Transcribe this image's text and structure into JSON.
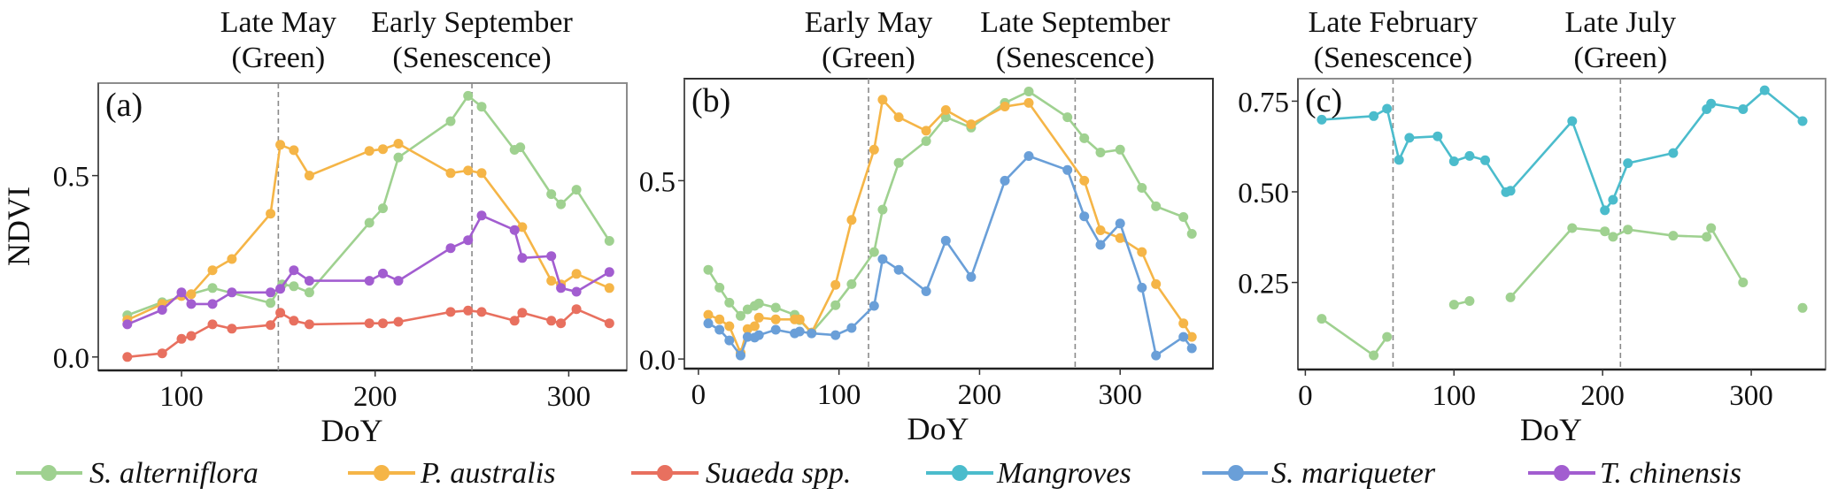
{
  "figure": {
    "ylabel": "NDVI",
    "legend": [
      {
        "name": "S. alterniflora",
        "color": "#9fd190"
      },
      {
        "name": "P. australis",
        "color": "#f5b547"
      },
      {
        "name": "Suaeda spp.",
        "color": "#e8705f"
      },
      {
        "name": "Mangroves",
        "color": "#4bbccc"
      },
      {
        "name": "S. mariqueter",
        "color": "#6a9fd8"
      },
      {
        "name": "T. chinensis",
        "color": "#a25dd0"
      }
    ],
    "reference_line_color": "#8a8a8a"
  },
  "chart_data": [
    {
      "type": "line",
      "panel": "(a)",
      "xlabel": "DoY",
      "ylabel": "NDVI",
      "xlim": [
        57,
        330
      ],
      "ylim": [
        -0.037,
        0.755
      ],
      "xticks": [
        100,
        200,
        300
      ],
      "yticks": [
        0.0,
        0.5
      ],
      "ytick_labels": [
        "0.0",
        "0.5"
      ],
      "grid": false,
      "reference_lines": [
        {
          "x": 150,
          "label_line1": "Late May",
          "label_line2": "(Green)"
        },
        {
          "x": 250,
          "label_line1": "Early September",
          "label_line2": "(Senescence)"
        }
      ],
      "series": [
        {
          "name": "S. alterniflora",
          "segments": [
            [
              [
                72,
                0.115
              ],
              [
                90,
                0.151
              ],
              [
                116,
                0.19
              ],
              [
                146,
                0.149
              ],
              [
                152,
                0.2
              ],
              [
                158,
                0.195
              ],
              [
                166,
                0.178
              ],
              [
                197,
                0.37
              ],
              [
                204,
                0.41
              ],
              [
                212,
                0.55
              ],
              [
                239,
                0.65
              ],
              [
                248,
                0.72
              ],
              [
                255,
                0.69
              ],
              [
                272,
                0.571
              ],
              [
                275,
                0.578
              ],
              [
                291,
                0.449
              ],
              [
                296,
                0.421
              ],
              [
                304,
                0.461
              ],
              [
                321,
                0.32
              ]
            ]
          ]
        },
        {
          "name": "P. australis",
          "segments": [
            [
              [
                72,
                0.102
              ],
              [
                90,
                0.146
              ],
              [
                100,
                0.168
              ],
              [
                105,
                0.173
              ],
              [
                116,
                0.239
              ],
              [
                126,
                0.27
              ],
              [
                146,
                0.395
              ],
              [
                151,
                0.585
              ],
              [
                158,
                0.57
              ],
              [
                166,
                0.5
              ],
              [
                197,
                0.568
              ],
              [
                204,
                0.573
              ],
              [
                212,
                0.588
              ],
              [
                239,
                0.507
              ],
              [
                248,
                0.514
              ],
              [
                255,
                0.507
              ],
              [
                276,
                0.358
              ],
              [
                291,
                0.21
              ],
              [
                296,
                0.2
              ],
              [
                304,
                0.229
              ],
              [
                321,
                0.19
              ]
            ]
          ]
        },
        {
          "name": "Suaeda spp.",
          "segments": [
            [
              [
                72,
                0.0
              ],
              [
                90,
                0.01
              ],
              [
                100,
                0.05
              ],
              [
                105,
                0.058
              ],
              [
                116,
                0.09
              ],
              [
                126,
                0.078
              ],
              [
                146,
                0.088
              ],
              [
                151,
                0.122
              ],
              [
                158,
                0.1
              ],
              [
                166,
                0.09
              ],
              [
                197,
                0.093
              ],
              [
                204,
                0.093
              ],
              [
                212,
                0.097
              ],
              [
                239,
                0.124
              ],
              [
                248,
                0.128
              ],
              [
                255,
                0.124
              ],
              [
                272,
                0.1
              ],
              [
                276,
                0.122
              ],
              [
                291,
                0.1
              ],
              [
                296,
                0.093
              ],
              [
                304,
                0.132
              ],
              [
                321,
                0.093
              ]
            ]
          ]
        },
        {
          "name": "T. chinensis",
          "segments": [
            [
              [
                72,
                0.09
              ],
              [
                90,
                0.13
              ],
              [
                100,
                0.178
              ],
              [
                105,
                0.146
              ],
              [
                116,
                0.146
              ],
              [
                126,
                0.178
              ],
              [
                146,
                0.178
              ],
              [
                151,
                0.188
              ],
              [
                158,
                0.239
              ],
              [
                166,
                0.21
              ],
              [
                197,
                0.21
              ],
              [
                204,
                0.23
              ],
              [
                212,
                0.21
              ],
              [
                239,
                0.3
              ],
              [
                248,
                0.322
              ],
              [
                255,
                0.39
              ],
              [
                272,
                0.35
              ],
              [
                276,
                0.273
              ],
              [
                291,
                0.278
              ],
              [
                296,
                0.19
              ],
              [
                304,
                0.18
              ],
              [
                321,
                0.234
              ]
            ]
          ]
        }
      ]
    },
    {
      "type": "line",
      "panel": "(b)",
      "xlabel": "DoY",
      "ylabel": "",
      "xlim": [
        -10,
        366
      ],
      "ylim": [
        -0.027,
        0.786
      ],
      "xticks": [
        0,
        100,
        200,
        300
      ],
      "yticks": [
        0.0,
        0.5
      ],
      "ytick_labels": [
        "0.0",
        "0.5"
      ],
      "grid": false,
      "reference_lines": [
        {
          "x": 121,
          "label_line1": "Early May",
          "label_line2": "(Green)"
        },
        {
          "x": 268,
          "label_line1": "Late September",
          "label_line2": "(Senescence)"
        }
      ],
      "series": [
        {
          "name": "S. alterniflora",
          "segments": [
            [
              [
                7,
                0.25
              ],
              [
                15,
                0.2
              ],
              [
                22,
                0.158
              ],
              [
                30,
                0.121
              ],
              [
                35,
                0.139
              ],
              [
                40,
                0.149
              ],
              [
                43,
                0.156
              ],
              [
                55,
                0.144
              ],
              [
                68.5,
                0.124
              ],
              [
                72,
                0.109
              ],
              [
                80.5,
                0.074
              ],
              [
                97.5,
                0.151
              ],
              [
                109,
                0.21
              ],
              [
                125,
                0.3
              ],
              [
                131,
                0.419
              ],
              [
                142.5,
                0.55
              ],
              [
                162,
                0.611
              ],
              [
                176,
                0.678
              ],
              [
                194,
                0.649
              ],
              [
                218,
                0.718
              ],
              [
                235,
                0.75
              ],
              [
                262.5,
                0.678
              ],
              [
                274.5,
                0.619
              ],
              [
                286,
                0.579
              ],
              [
                300,
                0.587
              ],
              [
                315.5,
                0.48
              ],
              [
                325.5,
                0.428
              ],
              [
                345,
                0.398
              ],
              [
                351,
                0.351
              ]
            ]
          ]
        },
        {
          "name": "P. australis",
          "segments": [
            [
              [
                7,
                0.124
              ],
              [
                15,
                0.111
              ],
              [
                22,
                0.092
              ],
              [
                30,
                0.017
              ],
              [
                35,
                0.084
              ],
              [
                40,
                0.092
              ],
              [
                43,
                0.116
              ],
              [
                55,
                0.111
              ],
              [
                68.5,
                0.111
              ],
              [
                72,
                0.111
              ],
              [
                80.5,
                0.074
              ],
              [
                97.5,
                0.208
              ],
              [
                109,
                0.39
              ],
              [
                125,
                0.587
              ],
              [
                131,
                0.727
              ],
              [
                142.5,
                0.678
              ],
              [
                162,
                0.64
              ],
              [
                176,
                0.698
              ],
              [
                194,
                0.658
              ],
              [
                218,
                0.708
              ],
              [
                235,
                0.718
              ],
              [
                274.5,
                0.5
              ],
              [
                286,
                0.361
              ],
              [
                300,
                0.339
              ],
              [
                315.5,
                0.3
              ],
              [
                325.5,
                0.21
              ],
              [
                345,
                0.1
              ],
              [
                351,
                0.062
              ]
            ]
          ]
        },
        {
          "name": "S. mariqueter",
          "segments": [
            [
              [
                7,
                0.1
              ],
              [
                15,
                0.082
              ],
              [
                22,
                0.052
              ],
              [
                30,
                0.01
              ],
              [
                35,
                0.062
              ],
              [
                40,
                0.06
              ],
              [
                43,
                0.067
              ],
              [
                55,
                0.082
              ],
              [
                68.5,
                0.072
              ],
              [
                72,
                0.077
              ],
              [
                80.5,
                0.072
              ],
              [
                97.5,
                0.067
              ],
              [
                109,
                0.087
              ],
              [
                125,
                0.149
              ],
              [
                131,
                0.28
              ],
              [
                142.5,
                0.25
              ],
              [
                162,
                0.19
              ],
              [
                176,
                0.332
              ],
              [
                194,
                0.23
              ],
              [
                218,
                0.5
              ],
              [
                235,
                0.569
              ],
              [
                262.5,
                0.53
              ],
              [
                274.5,
                0.4
              ],
              [
                286,
                0.32
              ],
              [
                300,
                0.38
              ],
              [
                315.5,
                0.2
              ],
              [
                325.5,
                0.01
              ],
              [
                345,
                0.062
              ],
              [
                351,
                0.03
              ]
            ]
          ]
        }
      ]
    },
    {
      "type": "line",
      "panel": "(c)",
      "xlabel": "DoY",
      "ylabel": "",
      "xlim": [
        -5,
        350
      ],
      "ylim": [
        0.01,
        0.812
      ],
      "xticks": [
        0,
        100,
        200,
        300
      ],
      "yticks": [
        0.25,
        0.5,
        0.75
      ],
      "ytick_labels": [
        "0.25",
        "0.50",
        "0.75"
      ],
      "grid": false,
      "reference_lines": [
        {
          "x": 59,
          "label_line1": "Late February",
          "label_line2": "(Senescence)"
        },
        {
          "x": 212,
          "label_line1": "Late July",
          "label_line2": "(Green)"
        }
      ],
      "series": [
        {
          "name": "Mangroves",
          "segments": [
            [
              [
                11,
                0.699
              ],
              [
                46,
                0.709
              ],
              [
                55,
                0.729
              ],
              [
                63,
                0.588
              ],
              [
                70,
                0.649
              ],
              [
                89,
                0.653
              ],
              [
                100,
                0.584
              ],
              [
                110.5,
                0.599
              ],
              [
                121,
                0.587
              ],
              [
                135,
                0.499
              ],
              [
                138,
                0.503
              ],
              [
                179.5,
                0.695
              ],
              [
                201.5,
                0.449
              ],
              [
                207,
                0.478
              ],
              [
                217,
                0.579
              ],
              [
                247.5,
                0.607
              ],
              [
                270,
                0.728
              ],
              [
                273,
                0.743
              ],
              [
                294.5,
                0.728
              ],
              [
                309,
                0.78
              ],
              [
                334.5,
                0.695
              ]
            ]
          ]
        },
        {
          "name": "S. alterniflora",
          "segments": [
            [
              [
                11,
                0.15
              ],
              [
                46,
                0.049
              ],
              [
                55,
                0.1
              ]
            ],
            [
              [
                100,
                0.189
              ],
              [
                110.5,
                0.199
              ]
            ],
            [
              [
                138,
                0.209
              ],
              [
                179.5,
                0.4
              ],
              [
                201.5,
                0.391
              ],
              [
                207,
                0.376
              ],
              [
                217,
                0.396
              ],
              [
                247.5,
                0.379
              ],
              [
                270,
                0.376
              ],
              [
                273,
                0.4
              ],
              [
                294.5,
                0.25
              ]
            ],
            [
              [
                334.5,
                0.18
              ]
            ]
          ]
        }
      ]
    }
  ]
}
